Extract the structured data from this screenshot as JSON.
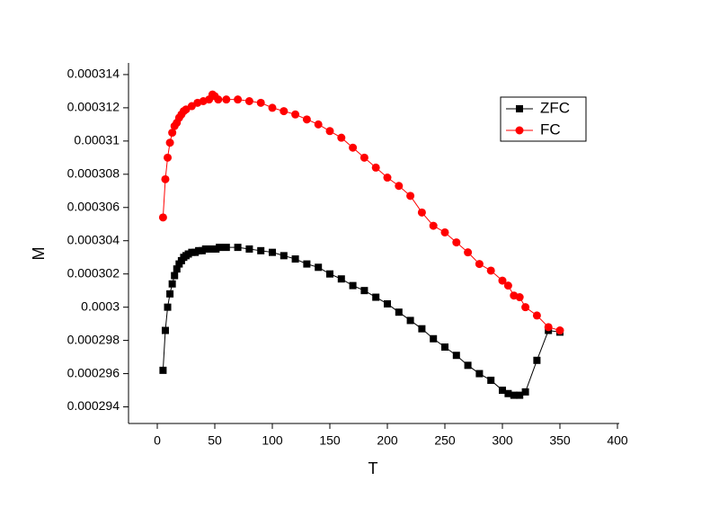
{
  "chart_data": {
    "type": "line",
    "xlabel": "T",
    "ylabel": "M",
    "xlim": [
      -25,
      400
    ],
    "xticks": [
      0,
      50,
      100,
      150,
      200,
      250,
      300,
      350,
      400
    ],
    "ylim": [
      0.000293,
      0.0003147
    ],
    "yticks": [
      0.000294,
      0.000296,
      0.000298,
      0.0003,
      0.000302,
      0.000304,
      0.000306,
      0.000308,
      0.00031,
      0.000312,
      0.000314
    ],
    "legend": "upper right",
    "series": [
      {
        "name": "ZFC",
        "color": "#000000",
        "marker": "square",
        "x": [
          5,
          7,
          9,
          11,
          13,
          15,
          17,
          19,
          21,
          23,
          25,
          27,
          30,
          33,
          36,
          39,
          42,
          45,
          48,
          51,
          54,
          60,
          70,
          80,
          90,
          100,
          110,
          120,
          130,
          140,
          150,
          160,
          170,
          180,
          190,
          200,
          210,
          220,
          230,
          240,
          250,
          260,
          270,
          280,
          290,
          300,
          305,
          310,
          315,
          320,
          330,
          340,
          350
        ],
        "values": [
          0.0002962,
          0.0002986,
          0.0003,
          0.0003008,
          0.0003014,
          0.0003019,
          0.0003023,
          0.0003026,
          0.0003028,
          0.000303,
          0.0003031,
          0.0003032,
          0.0003033,
          0.0003033,
          0.0003034,
          0.0003034,
          0.0003035,
          0.0003035,
          0.0003035,
          0.0003035,
          0.0003036,
          0.0003036,
          0.0003036,
          0.0003035,
          0.0003034,
          0.0003033,
          0.0003031,
          0.0003029,
          0.0003026,
          0.0003024,
          0.000302,
          0.0003017,
          0.0003013,
          0.000301,
          0.0003006,
          0.0003002,
          0.0002997,
          0.0002992,
          0.0002987,
          0.0002981,
          0.0002976,
          0.0002971,
          0.0002965,
          0.000296,
          0.0002956,
          0.000295,
          0.0002948,
          0.0002947,
          0.0002947,
          0.0002949,
          0.0002968,
          0.0002986,
          0.0002985
        ]
      },
      {
        "name": "FC",
        "color": "#ff0000",
        "marker": "circle",
        "x": [
          5,
          7,
          9,
          11,
          13,
          15,
          17,
          19,
          21,
          23,
          25,
          30,
          35,
          40,
          45,
          48,
          50,
          53,
          60,
          70,
          80,
          90,
          100,
          110,
          120,
          130,
          140,
          150,
          160,
          170,
          180,
          190,
          200,
          210,
          220,
          230,
          240,
          250,
          260,
          270,
          280,
          290,
          300,
          305,
          310,
          315,
          320,
          330,
          340,
          350
        ],
        "values": [
          0.0003054,
          0.0003077,
          0.000309,
          0.0003099,
          0.0003105,
          0.0003109,
          0.0003111,
          0.0003114,
          0.0003116,
          0.0003118,
          0.0003119,
          0.0003121,
          0.0003123,
          0.0003124,
          0.0003125,
          0.0003128,
          0.0003127,
          0.0003125,
          0.0003125,
          0.0003125,
          0.0003124,
          0.0003123,
          0.000312,
          0.0003118,
          0.0003116,
          0.0003113,
          0.000311,
          0.0003106,
          0.0003102,
          0.0003096,
          0.000309,
          0.0003084,
          0.0003078,
          0.0003073,
          0.0003067,
          0.0003057,
          0.0003049,
          0.0003045,
          0.0003039,
          0.0003033,
          0.0003026,
          0.0003022,
          0.0003016,
          0.0003013,
          0.0003007,
          0.0003006,
          0.0003,
          0.0002995,
          0.0002988,
          0.0002986
        ]
      }
    ]
  }
}
